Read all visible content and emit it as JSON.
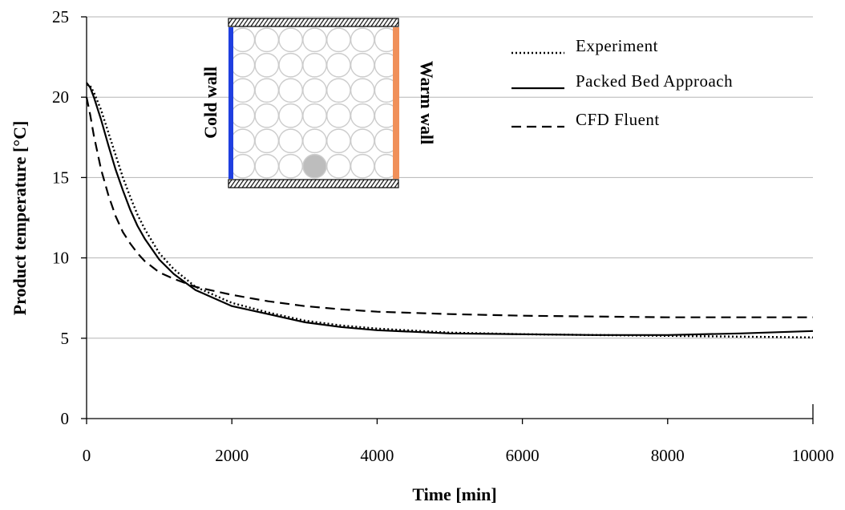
{
  "chart_data": {
    "type": "line",
    "xlabel": "Time [min]",
    "ylabel": "Product temperature [°C]",
    "xlim": [
      0,
      10000
    ],
    "ylim": [
      0,
      25
    ],
    "x_ticks": [
      "0",
      "2000",
      "4000",
      "6000",
      "8000",
      "10000"
    ],
    "y_ticks": [
      "0",
      "5",
      "10",
      "15",
      "20",
      "25"
    ],
    "x_tick_values": [
      0,
      2000,
      4000,
      6000,
      8000,
      10000
    ],
    "y_tick_values": [
      0,
      5,
      10,
      15,
      20,
      25
    ],
    "grid": "horizontal",
    "legend_position": "top-right",
    "series": [
      {
        "name": "Experiment",
        "style": "dotted",
        "color": "#000000",
        "x": [
          0,
          50,
          100,
          200,
          300,
          400,
          500,
          600,
          700,
          800,
          1000,
          1200,
          1500,
          2000,
          2500,
          3000,
          3500,
          4000,
          5000,
          6000,
          7000,
          8000,
          9000,
          10000
        ],
        "y": [
          20.8,
          20.7,
          20.3,
          19.2,
          17.8,
          16.4,
          15.0,
          13.8,
          12.7,
          11.8,
          10.3,
          9.3,
          8.2,
          7.2,
          6.6,
          6.1,
          5.8,
          5.6,
          5.35,
          5.25,
          5.2,
          5.15,
          5.1,
          5.05
        ]
      },
      {
        "name": "Packed Bed Approach",
        "style": "solid",
        "color": "#000000",
        "x": [
          0,
          50,
          100,
          200,
          300,
          400,
          500,
          600,
          700,
          800,
          1000,
          1200,
          1500,
          2000,
          2500,
          3000,
          3500,
          4000,
          5000,
          6000,
          7000,
          8000,
          9000,
          10000
        ],
        "y": [
          20.9,
          20.6,
          20.0,
          18.6,
          17.0,
          15.5,
          14.2,
          13.0,
          12.0,
          11.2,
          9.9,
          9.0,
          8.0,
          7.0,
          6.5,
          6.0,
          5.7,
          5.5,
          5.3,
          5.25,
          5.2,
          5.2,
          5.3,
          5.45
        ]
      },
      {
        "name": "CFD Fluent",
        "style": "dashed",
        "color": "#000000",
        "x": [
          0,
          50,
          100,
          200,
          300,
          400,
          500,
          600,
          700,
          800,
          1000,
          1200,
          1500,
          2000,
          2500,
          3000,
          3500,
          4000,
          5000,
          6000,
          7000,
          8000,
          9000,
          10000
        ],
        "y": [
          20.0,
          18.9,
          17.6,
          15.5,
          13.9,
          12.6,
          11.6,
          10.9,
          10.3,
          9.8,
          9.1,
          8.7,
          8.2,
          7.7,
          7.3,
          7.0,
          6.8,
          6.65,
          6.5,
          6.4,
          6.35,
          6.3,
          6.3,
          6.3
        ]
      }
    ],
    "inset": {
      "left_label": "Cold wall",
      "right_label": "Warm wall",
      "cold_color": "#1f3fe0",
      "warm_color": "#f0905a",
      "circle_color": "#cccccc",
      "highlight_color": "#bdbdbd"
    }
  }
}
